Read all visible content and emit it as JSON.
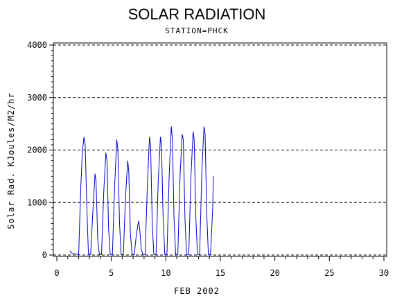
{
  "chart_data": {
    "type": "line",
    "title": "SOLAR RADIATION",
    "subtitle": "STATION=PHCK",
    "xlabel": "FEB 2002",
    "ylabel": "Solar Rad. KJoules/M2/hr",
    "xlim": [
      0,
      30
    ],
    "ylim": [
      0,
      4000
    ],
    "x_ticks": [
      0,
      5,
      10,
      15,
      20,
      25,
      30
    ],
    "y_ticks": [
      0,
      1000,
      2000,
      3000,
      4000
    ],
    "grid": "horizontal-dashed",
    "series": [
      {
        "color": "#0000cc",
        "x": [
          1.2,
          1.4,
          1.7,
          2.0,
          2.2,
          2.35,
          2.5,
          2.6,
          2.75,
          2.9,
          3.1,
          3.3,
          3.5,
          3.6,
          3.75,
          3.9,
          4.1,
          4.3,
          4.5,
          4.6,
          4.75,
          4.9,
          5.1,
          5.3,
          5.5,
          5.6,
          5.75,
          5.9,
          6.1,
          6.3,
          6.5,
          6.6,
          6.75,
          6.9,
          7.1,
          7.3,
          7.5,
          7.6,
          7.75,
          7.9,
          8.1,
          8.3,
          8.5,
          8.6,
          8.75,
          8.9,
          9.1,
          9.3,
          9.5,
          9.6,
          9.75,
          9.9,
          10.1,
          10.3,
          10.5,
          10.6,
          10.75,
          10.9,
          11.1,
          11.3,
          11.5,
          11.6,
          11.75,
          11.9,
          12.1,
          12.3,
          12.5,
          12.6,
          12.75,
          12.9,
          13.1,
          13.3,
          13.5,
          13.6,
          13.75,
          13.9,
          14.1,
          14.3,
          14.35
        ],
        "y": [
          80,
          30,
          20,
          10,
          1300,
          2000,
          2250,
          2100,
          900,
          20,
          10,
          800,
          1550,
          1400,
          300,
          10,
          10,
          1200,
          1950,
          1800,
          500,
          10,
          10,
          1300,
          2200,
          2000,
          600,
          10,
          10,
          1100,
          1800,
          1600,
          400,
          10,
          10,
          400,
          650,
          500,
          100,
          10,
          10,
          1300,
          2250,
          2100,
          600,
          10,
          10,
          1400,
          2250,
          2100,
          700,
          10,
          10,
          1500,
          2450,
          2200,
          700,
          10,
          10,
          1500,
          2300,
          2200,
          700,
          10,
          10,
          1500,
          2350,
          2200,
          700,
          10,
          10,
          1600,
          2450,
          2300,
          800,
          10,
          10,
          900,
          1500
        ]
      }
    ]
  }
}
